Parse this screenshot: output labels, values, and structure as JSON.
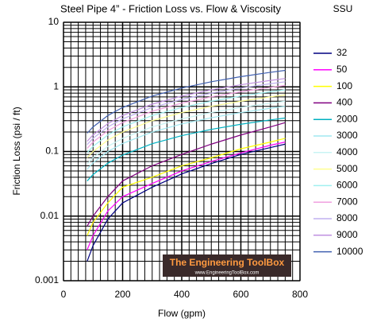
{
  "chart_data": {
    "type": "line",
    "title": "Steel Pipe 4” - Friction Loss vs. Flow & Viscosity",
    "legend_title": "SSU",
    "xlabel": "Flow (gpm)",
    "ylabel": "Friction Loss (psi / ft)",
    "annotations": [
      "The Engineering ToolBox",
      "www.EngineeringToolBox.com"
    ],
    "x": [
      80,
      100,
      150,
      200,
      300,
      400,
      500,
      600,
      700,
      750
    ],
    "xlim": [
      0,
      800
    ],
    "xticks": [
      0,
      200,
      400,
      600,
      800
    ],
    "ylim": [
      0.001,
      10
    ],
    "yticks": [
      0.001,
      0.01,
      0.1,
      1,
      10
    ],
    "ylog": true,
    "grid": true,
    "legend": "right",
    "series": [
      {
        "name": "32",
        "color": "#000080",
        "values": [
          0.002,
          0.0035,
          0.009,
          0.016,
          0.028,
          0.045,
          0.065,
          0.09,
          0.115,
          0.13
        ]
      },
      {
        "name": "50",
        "color": "#ff00ff",
        "values": [
          0.003,
          0.005,
          0.012,
          0.02,
          0.032,
          0.05,
          0.07,
          0.095,
          0.125,
          0.14
        ]
      },
      {
        "name": "100",
        "color": "#ffff00",
        "values": [
          0.005,
          0.008,
          0.016,
          0.028,
          0.04,
          0.06,
          0.08,
          0.11,
          0.14,
          0.16
        ]
      },
      {
        "name": "400",
        "color": "#800080",
        "values": [
          0.007,
          0.01,
          0.02,
          0.035,
          0.06,
          0.09,
          0.13,
          0.18,
          0.24,
          0.28
        ]
      },
      {
        "name": "2000",
        "color": "#00b0c0",
        "values": [
          0.035,
          0.044,
          0.066,
          0.088,
          0.132,
          0.176,
          0.22,
          0.264,
          0.308,
          0.33
        ]
      },
      {
        "name": "3000",
        "color": "#a0e8f0",
        "values": [
          0.053,
          0.067,
          0.1,
          0.133,
          0.2,
          0.267,
          0.333,
          0.4,
          0.467,
          0.5
        ]
      },
      {
        "name": "4000",
        "color": "#c8f4f4",
        "values": [
          0.064,
          0.08,
          0.12,
          0.16,
          0.24,
          0.32,
          0.4,
          0.48,
          0.56,
          0.6
        ]
      },
      {
        "name": "5000",
        "color": "#ffff90",
        "values": [
          0.08,
          0.1,
          0.15,
          0.2,
          0.3,
          0.4,
          0.5,
          0.6,
          0.7,
          0.75
        ]
      },
      {
        "name": "6000",
        "color": "#a0f0f0",
        "values": [
          0.096,
          0.12,
          0.18,
          0.24,
          0.36,
          0.48,
          0.6,
          0.72,
          0.84,
          0.9
        ]
      },
      {
        "name": "7000",
        "color": "#f0a0e0",
        "values": [
          0.112,
          0.14,
          0.21,
          0.28,
          0.42,
          0.56,
          0.7,
          0.84,
          0.98,
          1.05
        ]
      },
      {
        "name": "8000",
        "color": "#c0b0f0",
        "values": [
          0.128,
          0.16,
          0.24,
          0.32,
          0.48,
          0.64,
          0.8,
          0.96,
          1.12,
          1.2
        ]
      },
      {
        "name": "9000",
        "color": "#c090e0",
        "values": [
          0.144,
          0.18,
          0.27,
          0.36,
          0.54,
          0.72,
          0.9,
          1.08,
          1.26,
          1.35
        ]
      },
      {
        "name": "10000",
        "color": "#4060b0",
        "values": [
          0.192,
          0.24,
          0.36,
          0.48,
          0.72,
          0.96,
          1.2,
          1.44,
          1.68,
          1.8
        ]
      }
    ]
  }
}
